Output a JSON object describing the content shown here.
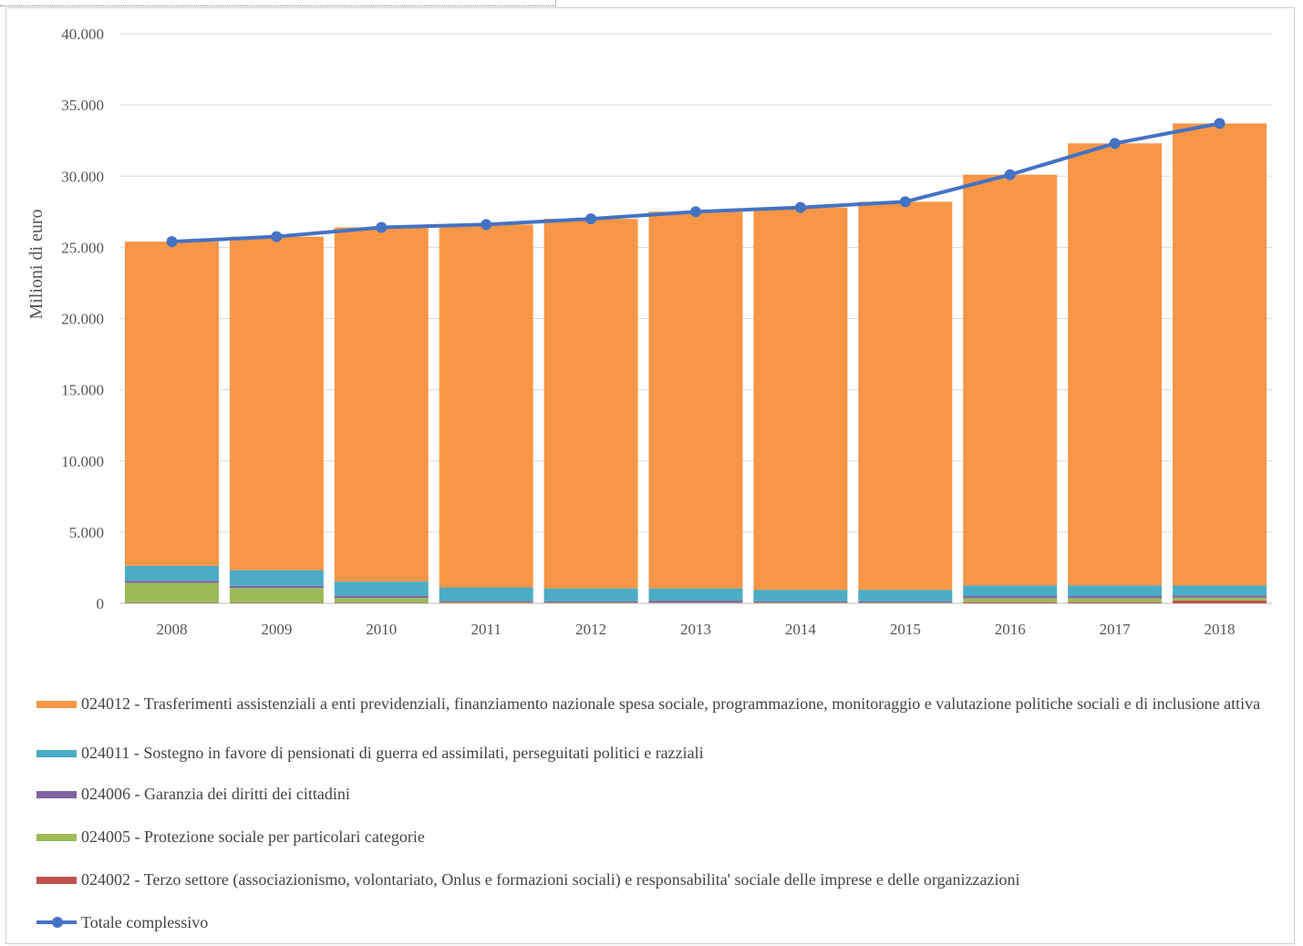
{
  "chart_data": {
    "type": "bar",
    "stacked": true,
    "title": "",
    "xlabel": "",
    "ylabel": "Milioni di euro",
    "ylim": [
      0,
      40000
    ],
    "yticks": [
      0,
      5000,
      10000,
      15000,
      20000,
      25000,
      30000,
      35000,
      40000
    ],
    "ytick_labels": [
      "0",
      "5.000",
      "10.000",
      "15.000",
      "20.000",
      "25.000",
      "30.000",
      "35.000",
      "40.000"
    ],
    "grid": true,
    "legend_position": "bottom",
    "categories": [
      "2008",
      "2009",
      "2010",
      "2011",
      "2012",
      "2013",
      "2014",
      "2015",
      "2016",
      "2017",
      "2018"
    ],
    "series": [
      {
        "name": "024002 - Terzo settore (associazionismo, volontariato, Onlus e formazioni sociali) e responsabilita' sociale delle imprese e delle organizzazioni",
        "color": "#C0504D",
        "values": [
          30,
          30,
          30,
          20,
          20,
          20,
          20,
          20,
          80,
          80,
          200
        ]
      },
      {
        "name": "024005 - Protezione sociale per particolari categorie",
        "color": "#9BBB59",
        "values": [
          1400,
          1050,
          350,
          50,
          30,
          30,
          30,
          30,
          280,
          280,
          200
        ]
      },
      {
        "name": "024006 - Garanzia dei diritti dei cittadini",
        "color": "#8064A2",
        "values": [
          150,
          150,
          150,
          100,
          100,
          150,
          100,
          100,
          150,
          150,
          150
        ]
      },
      {
        "name": "024011 - Sostegno in favore di pensionati di guerra ed assimilati, perseguitati politici e razziali",
        "color": "#4BACC6",
        "values": [
          1050,
          1100,
          1000,
          950,
          900,
          850,
          800,
          800,
          750,
          750,
          700
        ]
      },
      {
        "name": "024012 - Trasferimenti assistenziali a enti previdenziali, finanziamento nazionale spesa sociale, programmazione, monitoraggio e valutazione politiche sociali e di inclusione attiva",
        "color": "#F79646",
        "values": [
          22770,
          23420,
          24870,
          25480,
          25950,
          26450,
          26850,
          27250,
          28840,
          31040,
          32450
        ]
      }
    ],
    "line_series": {
      "name": "Totale complessivo",
      "color": "#4472C4",
      "values": [
        25400,
        25750,
        26400,
        26600,
        27000,
        27500,
        27800,
        28200,
        30100,
        32300,
        33700
      ]
    },
    "legend": [
      {
        "label": "024012 - Trasferimenti assistenziali a enti previdenziali, finanziamento nazionale spesa sociale, programmazione, monitoraggio e valutazione politiche sociali e di inclusione attiva",
        "color": "#F79646",
        "kind": "bar"
      },
      {
        "label": "024011 - Sostegno in favore di pensionati di guerra ed assimilati, perseguitati politici e razziali",
        "color": "#4BACC6",
        "kind": "bar"
      },
      {
        "label": "024006 - Garanzia dei diritti dei cittadini",
        "color": "#8064A2",
        "kind": "bar"
      },
      {
        "label": "024005 - Protezione sociale per particolari categorie",
        "color": "#9BBB59",
        "kind": "bar"
      },
      {
        "label": "024002 - Terzo settore (associazionismo, volontariato, Onlus e formazioni sociali) e responsabilita' sociale delle imprese e delle organizzazioni",
        "color": "#C0504D",
        "kind": "bar"
      },
      {
        "label": "Totale complessivo",
        "color": "#4472C4",
        "kind": "line"
      }
    ]
  }
}
